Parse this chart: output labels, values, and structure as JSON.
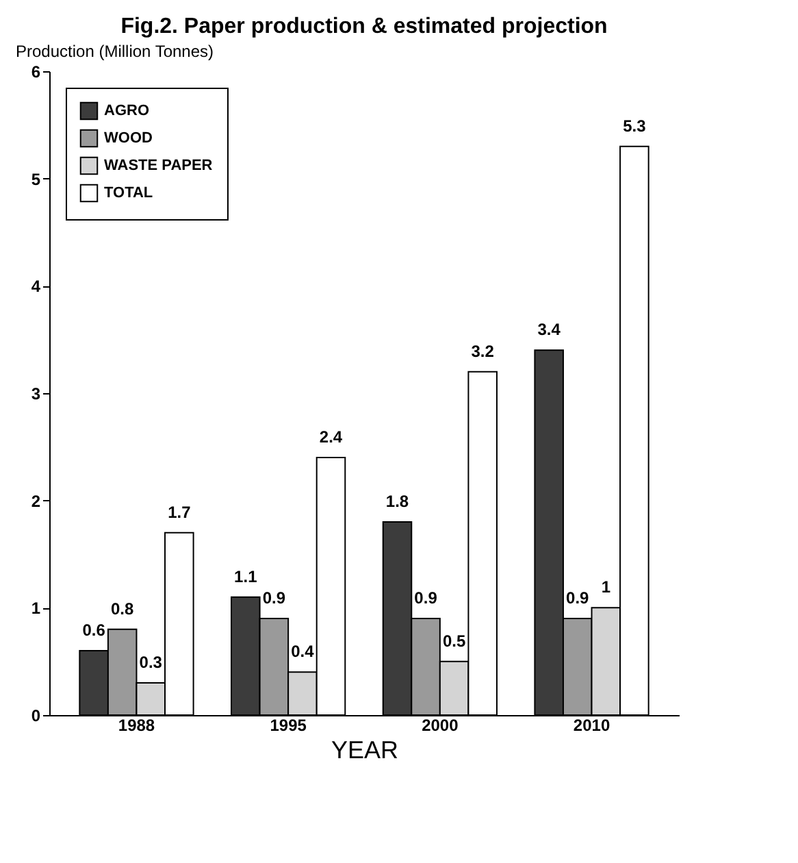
{
  "chart_data": {
    "type": "bar",
    "title": "Fig.2. Paper production & estimated projection",
    "ylabel": "Production (Million Tonnes)",
    "xlabel": "YEAR",
    "categories": [
      "1988",
      "1995",
      "2000",
      "2010"
    ],
    "series": [
      {
        "name": "AGRO",
        "color": "#3c3c3c",
        "values": [
          0.6,
          1.1,
          1.8,
          3.4
        ]
      },
      {
        "name": "WOOD",
        "color": "#9a9a9a",
        "values": [
          0.8,
          0.9,
          0.9,
          0.9
        ]
      },
      {
        "name": "WASTE PAPER",
        "color": "#d4d4d4",
        "values": [
          0.3,
          0.4,
          0.5,
          1
        ]
      },
      {
        "name": "TOTAL",
        "color": "#ffffff",
        "values": [
          1.7,
          2.4,
          3.2,
          5.3
        ]
      }
    ],
    "ylim": [
      0,
      6
    ],
    "yticks": [
      0,
      1,
      2,
      3,
      4,
      5,
      6
    ],
    "grid": false,
    "legend": "top left",
    "data_labels": true
  }
}
